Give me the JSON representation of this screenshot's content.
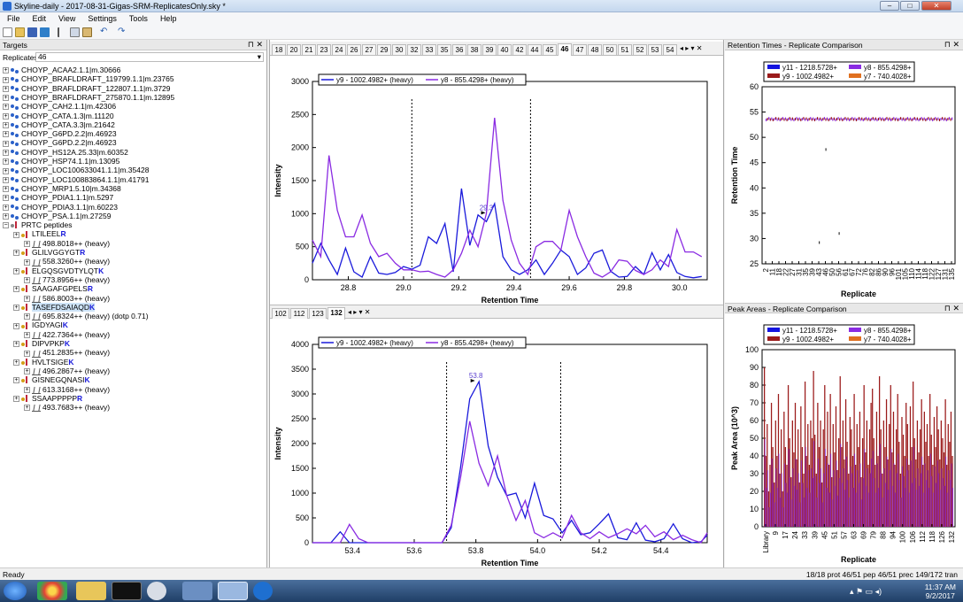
{
  "app": {
    "title": "Skyline-daily - 2017-08-31-Gigas-SRM-ReplicatesOnly.sky *"
  },
  "menu": [
    "File",
    "Edit",
    "View",
    "Settings",
    "Tools",
    "Help"
  ],
  "targets": {
    "title": "Targets",
    "replicates_label": "Replicates:",
    "replicates_value": "46",
    "items": [
      {
        "t": "CHOYP_ACAA2.1.1|m.30666",
        "k": "prot",
        "l": 0
      },
      {
        "t": "CHOYP_BRAFLDRAFT_119799.1.1|m.23765",
        "k": "prot",
        "l": 0
      },
      {
        "t": "CHOYP_BRAFLDRAFT_122807.1.1|m.3729",
        "k": "prot",
        "l": 0
      },
      {
        "t": "CHOYP_BRAFLDRAFT_275870.1.1|m.12895",
        "k": "prot",
        "l": 0
      },
      {
        "t": "CHOYP_CAH2.1.1|m.42306",
        "k": "prot",
        "l": 0
      },
      {
        "t": "CHOYP_CATA.1.3|m.11120",
        "k": "prot",
        "l": 0
      },
      {
        "t": "CHOYP_CATA.3.3|m.21642",
        "k": "prot",
        "l": 0
      },
      {
        "t": "CHOYP_G6PD.2.2|m.46923",
        "k": "prot",
        "l": 0
      },
      {
        "t": "CHOYP_G6PD.2.2|m.46923",
        "k": "prot",
        "l": 0
      },
      {
        "t": "CHOYP_HS12A.25.33|m.60352",
        "k": "prot",
        "l": 0
      },
      {
        "t": "CHOYP_HSP74.1.1|m.13095",
        "k": "prot",
        "l": 0
      },
      {
        "t": "CHOYP_LOC100633041.1.1|m.35428",
        "k": "prot",
        "l": 0
      },
      {
        "t": "CHOYP_LOC100883864.1.1|m.41791",
        "k": "prot",
        "l": 0
      },
      {
        "t": "CHOYP_MRP1.5.10|m.34368",
        "k": "prot",
        "l": 0
      },
      {
        "t": "CHOYP_PDIA1.1.1|m.5297",
        "k": "prot",
        "l": 0
      },
      {
        "t": "CHOYP_PDIA3.1.1|m.60223",
        "k": "prot",
        "l": 0
      },
      {
        "t": "CHOYP_PSA.1.1|m.27259",
        "k": "prot",
        "l": 0
      },
      {
        "t": "PRTC peptides",
        "k": "group",
        "l": 0
      },
      {
        "t": "LTILEELR",
        "k": "pep",
        "l": 1
      },
      {
        "t": "498.8018++ (heavy)",
        "k": "prec",
        "l": 2
      },
      {
        "t": "GLILVGGYGTR",
        "k": "pep",
        "l": 1
      },
      {
        "t": "558.3260++ (heavy)",
        "k": "prec",
        "l": 2
      },
      {
        "t": "ELGQSGVDTYLQTK",
        "k": "pep",
        "l": 1
      },
      {
        "t": "773.8956++ (heavy)",
        "k": "prec",
        "l": 2
      },
      {
        "t": "SAAGAFGPELSR",
        "k": "pep",
        "l": 1
      },
      {
        "t": "586.8003++ (heavy)",
        "k": "prec",
        "l": 2
      },
      {
        "t": "TASEFDSAIAQDK",
        "k": "pep",
        "l": 1,
        "hl": true
      },
      {
        "t": "695.8324++ (heavy) (dotp 0.71)",
        "k": "prec",
        "l": 2
      },
      {
        "t": "IGDYAGIK",
        "k": "pep",
        "l": 1
      },
      {
        "t": "422.7364++ (heavy)",
        "k": "prec",
        "l": 2
      },
      {
        "t": "DIPVPKPK",
        "k": "pep",
        "l": 1
      },
      {
        "t": "451.2835++ (heavy)",
        "k": "prec",
        "l": 2
      },
      {
        "t": "HVLTSIGEK",
        "k": "pep",
        "l": 1
      },
      {
        "t": "496.2867++ (heavy)",
        "k": "prec",
        "l": 2
      },
      {
        "t": "GISNEGQNASIK",
        "k": "pep",
        "l": 1
      },
      {
        "t": "613.3168++ (heavy)",
        "k": "prec",
        "l": 2
      },
      {
        "t": "SSAAPPPPPR",
        "k": "pep",
        "l": 1
      },
      {
        "t": "493.7683++ (heavy)",
        "k": "prec",
        "l": 2
      }
    ]
  },
  "top_tabs": [
    "18",
    "20",
    "21",
    "23",
    "24",
    "26",
    "27",
    "29",
    "30",
    "32",
    "33",
    "35",
    "36",
    "38",
    "39",
    "40",
    "42",
    "44",
    "45",
    "46",
    "47",
    "48",
    "50",
    "51",
    "52",
    "53",
    "54"
  ],
  "top_tab_selected": "46",
  "bottom_tabs": [
    "102",
    "112",
    "123",
    "132"
  ],
  "bottom_tab_selected": "132",
  "right_panels": {
    "rt_title": "Retention Times - Replicate Comparison",
    "pa_title": "Peak Areas - Replicate Comparison"
  },
  "colors": {
    "y9": "#1a1adb",
    "y8": "#8a2be2",
    "y11": "#1414e0",
    "y8b": "#9b1b1b",
    "y7": "#e07020"
  },
  "chart_data": [
    {
      "type": "line",
      "legend": [
        "y9 - 1002.4982+ (heavy)",
        "y8 - 855.4298+ (heavy)"
      ],
      "xlabel": "Retention Time",
      "ylabel": "Intensity",
      "xlim": [
        28.67,
        30.1
      ],
      "ylim": [
        0,
        3000
      ],
      "xticks": [
        "28.8",
        "29.0",
        "29.2",
        "29.4",
        "29.6",
        "29.8",
        "30.0"
      ],
      "yticks": [
        "0",
        "500",
        "1000",
        "1500",
        "2000",
        "2500",
        "3000"
      ],
      "peak_label": "29.3",
      "boundaries": [
        29.03,
        29.46
      ],
      "series": [
        {
          "name": "y9 - 1002.4982+ (heavy)",
          "x": [
            28.67,
            28.7,
            28.73,
            28.76,
            28.79,
            28.82,
            28.85,
            28.88,
            28.91,
            28.94,
            28.97,
            29.0,
            29.03,
            29.06,
            29.09,
            29.12,
            29.15,
            29.18,
            29.21,
            29.24,
            29.27,
            29.3,
            29.33,
            29.36,
            29.39,
            29.42,
            29.45,
            29.48,
            29.51,
            29.54,
            29.57,
            29.6,
            29.63,
            29.66,
            29.69,
            29.72,
            29.75,
            29.78,
            29.81,
            29.84,
            29.87,
            29.9,
            29.93,
            29.96,
            29.99,
            30.02,
            30.05,
            30.08
          ],
          "y": [
            250,
            550,
            300,
            80,
            480,
            120,
            40,
            350,
            100,
            80,
            110,
            200,
            160,
            220,
            650,
            550,
            850,
            120,
            1380,
            520,
            980,
            880,
            1150,
            350,
            150,
            80,
            150,
            300,
            80,
            250,
            450,
            350,
            80,
            180,
            400,
            450,
            130,
            40,
            50,
            200,
            80,
            410,
            150,
            380,
            110,
            50,
            30,
            50
          ]
        },
        {
          "name": "y8 - 855.4298+ (heavy)",
          "x": [
            28.67,
            28.7,
            28.73,
            28.76,
            28.79,
            28.82,
            28.85,
            28.88,
            28.91,
            28.94,
            28.97,
            29.0,
            29.03,
            29.06,
            29.09,
            29.12,
            29.15,
            29.18,
            29.21,
            29.24,
            29.27,
            29.3,
            29.33,
            29.36,
            29.39,
            29.42,
            29.45,
            29.48,
            29.51,
            29.54,
            29.57,
            29.6,
            29.63,
            29.66,
            29.69,
            29.72,
            29.75,
            29.78,
            29.81,
            29.84,
            29.87,
            29.9,
            29.93,
            29.96,
            29.99,
            30.02,
            30.05,
            30.08
          ],
          "y": [
            600,
            350,
            1880,
            1050,
            650,
            650,
            980,
            550,
            350,
            400,
            250,
            150,
            150,
            120,
            130,
            80,
            40,
            150,
            400,
            750,
            500,
            1000,
            2450,
            1200,
            600,
            250,
            80,
            500,
            580,
            580,
            450,
            1050,
            650,
            350,
            100,
            40,
            120,
            300,
            280,
            140,
            80,
            150,
            300,
            200,
            760,
            420,
            420,
            350
          ]
        }
      ]
    },
    {
      "type": "line",
      "legend": [
        "y9 - 1002.4982+ (heavy)",
        "y8 - 855.4298+ (heavy)"
      ],
      "xlabel": "Retention Time",
      "ylabel": "Intensity",
      "xlim": [
        53.27,
        54.55
      ],
      "ylim": [
        0,
        4000
      ],
      "xticks": [
        "53.4",
        "53.6",
        "53.8",
        "54.0",
        "54.2",
        "54.4"
      ],
      "yticks": [
        "0",
        "500",
        "1000",
        "1500",
        "2000",
        "2500",
        "3000",
        "3500",
        "4000"
      ],
      "peak_label": "53.8",
      "boundaries": [
        53.705,
        54.075
      ],
      "series": [
        {
          "name": "y9 - 1002.4982+ (heavy)",
          "x": [
            53.27,
            53.3,
            53.33,
            53.36,
            53.39,
            53.42,
            53.45,
            53.48,
            53.51,
            53.54,
            53.57,
            53.6,
            53.63,
            53.66,
            53.69,
            53.72,
            53.75,
            53.78,
            53.81,
            53.84,
            53.87,
            53.9,
            53.93,
            53.96,
            53.99,
            54.02,
            54.05,
            54.08,
            54.11,
            54.14,
            54.17,
            54.2,
            54.23,
            54.26,
            54.29,
            54.32,
            54.35,
            54.38,
            54.41,
            54.44,
            54.47,
            54.5,
            54.53,
            54.55
          ],
          "y": [
            0,
            0,
            0,
            220,
            0,
            0,
            0,
            0,
            0,
            0,
            0,
            0,
            0,
            0,
            0,
            300,
            1500,
            2900,
            3250,
            1950,
            1320,
            950,
            1000,
            500,
            1200,
            550,
            480,
            200,
            450,
            160,
            200,
            380,
            580,
            100,
            60,
            400,
            50,
            20,
            80,
            380,
            80,
            0,
            20,
            150
          ]
        },
        {
          "name": "y8 - 855.4298+ (heavy)",
          "x": [
            53.27,
            53.3,
            53.33,
            53.36,
            53.39,
            53.42,
            53.45,
            53.48,
            53.51,
            53.54,
            53.57,
            53.6,
            53.63,
            53.66,
            53.69,
            53.72,
            53.75,
            53.78,
            53.81,
            53.84,
            53.87,
            53.9,
            53.93,
            53.96,
            53.99,
            54.02,
            54.05,
            54.08,
            54.11,
            54.14,
            54.17,
            54.2,
            54.23,
            54.26,
            54.29,
            54.32,
            54.35,
            54.38,
            54.41,
            54.44,
            54.47,
            54.5,
            54.53,
            54.55
          ],
          "y": [
            0,
            0,
            0,
            0,
            370,
            80,
            0,
            0,
            0,
            0,
            0,
            0,
            0,
            0,
            0,
            350,
            1300,
            2450,
            1600,
            1150,
            1750,
            950,
            450,
            850,
            200,
            100,
            200,
            100,
            550,
            200,
            80,
            220,
            100,
            180,
            280,
            180,
            350,
            120,
            220,
            60,
            150,
            60,
            0,
            200
          ]
        }
      ]
    },
    {
      "type": "scatter",
      "legend": [
        "y11 - 1218.5728+",
        "y9 - 1002.4982+",
        "y8 - 855.4298+",
        "y7 - 740.4028+"
      ],
      "xlabel": "Replicate",
      "ylabel": "Retention Time",
      "ylim": [
        25,
        60
      ],
      "xticks": [
        "2",
        "11",
        "18",
        "22",
        "27",
        "31",
        "35",
        "39",
        "43",
        "46",
        "50",
        "56",
        "61",
        "67",
        "72",
        "76",
        "82",
        "86",
        "90",
        "96",
        "101",
        "105",
        "110",
        "114",
        "118",
        "122",
        "127",
        "131",
        "135"
      ],
      "yticks": [
        "25",
        "30",
        "35",
        "40",
        "45",
        "50",
        "55",
        "60"
      ],
      "band_value": 53.6,
      "outliers": [
        {
          "x": "46",
          "y": 47.6
        },
        {
          "x": "56",
          "y": 31.0
        },
        {
          "x": "43",
          "y": 29.2
        }
      ]
    },
    {
      "type": "bar",
      "legend": [
        "y11 - 1218.5728+",
        "y9 - 1002.4982+",
        "y8 - 855.4298+",
        "y7 - 740.4028+"
      ],
      "xlabel": "Replicate",
      "ylabel": "Peak Area (10^3)",
      "ylim": [
        0,
        100
      ],
      "xticks": [
        "Library",
        "9",
        "17",
        "24",
        "33",
        "39",
        "45",
        "51",
        "57",
        "63",
        "69",
        "79",
        "88",
        "94",
        "100",
        "106",
        "112",
        "118",
        "126",
        "132"
      ],
      "yticks": [
        "0",
        "10",
        "20",
        "30",
        "40",
        "50",
        "60",
        "70",
        "80",
        "90",
        "100"
      ],
      "groups": [
        {
          "s": 0,
          "e": 35,
          "y8": [
            90,
            40,
            58,
            20,
            35,
            70,
            45,
            25,
            60,
            40,
            75,
            30,
            55,
            20,
            65,
            45,
            35,
            80,
            50,
            28,
            60,
            42,
            70,
            38,
            55,
            25,
            68,
            45,
            30,
            82,
            40,
            58,
            35,
            60,
            50
          ]
        },
        {
          "s": 35,
          "e": 77,
          "y8": [
            88,
            52,
            30,
            70,
            45,
            60,
            25,
            55,
            80,
            40,
            65,
            35,
            75,
            28,
            58,
            42,
            68,
            32,
            50,
            85,
            45,
            60,
            38,
            72,
            48,
            30,
            62,
            55,
            40,
            75,
            35,
            58,
            45,
            65,
            28,
            50,
            80,
            42,
            60,
            35,
            55,
            70
          ]
        },
        {
          "s": 77,
          "e": 135,
          "y8": [
            78,
            50,
            35,
            65,
            40,
            85,
            55,
            30,
            60,
            45,
            72,
            38,
            58,
            80,
            42,
            65,
            35,
            55,
            75,
            48,
            30,
            62,
            52,
            40,
            70,
            58,
            35,
            68,
            45,
            82,
            50,
            38,
            60,
            42,
            55,
            72,
            35,
            65,
            48,
            58,
            40,
            75,
            52,
            35,
            62,
            45,
            68,
            55,
            38,
            60,
            50,
            42,
            72,
            35,
            58,
            48,
            65,
            40
          ]
        }
      ]
    }
  ],
  "status": {
    "left": "Ready",
    "right": "18/18 prot  46/51 pep  46/51 prec  149/172 tran"
  },
  "clock": {
    "time": "11:37 AM",
    "date": "9/2/2017"
  }
}
